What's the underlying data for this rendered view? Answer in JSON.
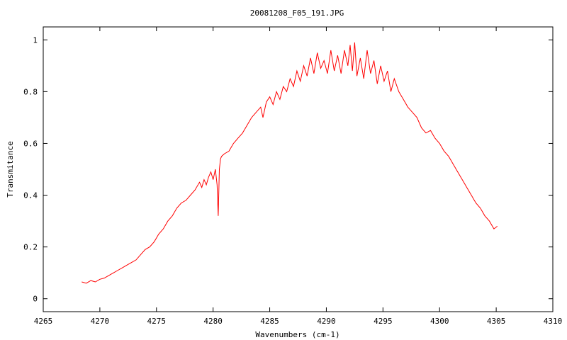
{
  "chart_data": {
    "type": "line",
    "title": "20081208_F05_191.JPG",
    "xlabel": "Wavenumbers (cm-1)",
    "ylabel": "Transmitance",
    "xlim": [
      4265,
      4310
    ],
    "ylim": [
      -0.05,
      1.05
    ],
    "xticks": [
      4265,
      4270,
      4275,
      4280,
      4285,
      4290,
      4295,
      4300,
      4305,
      4310
    ],
    "xtick_labels": [
      "4265",
      "4270",
      "4275",
      "4280",
      "4285",
      "4290",
      "4295",
      "4300",
      "4305",
      "4310"
    ],
    "yticks": [
      0,
      0.2,
      0.4,
      0.6,
      0.8,
      1
    ],
    "ytick_labels": [
      "0",
      "0.2",
      "0.4",
      "0.6",
      "0.8",
      "1"
    ],
    "grid": false,
    "legend": "none",
    "series": [
      {
        "color": "#ff0000",
        "x": [
          4268.4,
          4268.8,
          4269.2,
          4269.6,
          4270.0,
          4270.4,
          4270.8,
          4271.2,
          4271.6,
          4272.0,
          4272.4,
          4272.8,
          4273.2,
          4273.6,
          4274.0,
          4274.4,
          4274.8,
          4275.2,
          4275.6,
          4276.0,
          4276.4,
          4276.8,
          4277.2,
          4277.6,
          4278.0,
          4278.4,
          4278.8,
          4279.0,
          4279.2,
          4279.4,
          4279.6,
          4279.8,
          4280.0,
          4280.2,
          4280.35,
          4280.45,
          4280.55,
          4280.65,
          4280.75,
          4281.0,
          4281.4,
          4281.8,
          4282.2,
          4282.6,
          4283.0,
          4283.4,
          4283.8,
          4284.2,
          4284.4,
          4284.7,
          4285.0,
          4285.3,
          4285.6,
          4285.9,
          4286.2,
          4286.5,
          4286.8,
          4287.1,
          4287.4,
          4287.7,
          4288.0,
          4288.3,
          4288.6,
          4288.9,
          4289.2,
          4289.5,
          4289.8,
          4290.1,
          4290.4,
          4290.7,
          4291.0,
          4291.3,
          4291.6,
          4291.9,
          4292.1,
          4292.3,
          4292.5,
          4292.7,
          4293.0,
          4293.3,
          4293.6,
          4293.9,
          4294.2,
          4294.5,
          4294.8,
          4295.1,
          4295.4,
          4295.7,
          4296.0,
          4296.4,
          4296.8,
          4297.2,
          4297.6,
          4298.0,
          4298.4,
          4298.8,
          4299.2,
          4299.6,
          4300.0,
          4300.4,
          4300.8,
          4301.2,
          4301.6,
          4302.0,
          4302.4,
          4302.8,
          4303.2,
          4303.6,
          4304.0,
          4304.4,
          4304.8,
          4305.1
        ],
        "y": [
          0.065,
          0.06,
          0.07,
          0.065,
          0.075,
          0.08,
          0.09,
          0.1,
          0.11,
          0.12,
          0.13,
          0.14,
          0.15,
          0.17,
          0.19,
          0.2,
          0.22,
          0.25,
          0.27,
          0.3,
          0.32,
          0.35,
          0.37,
          0.38,
          0.4,
          0.42,
          0.45,
          0.43,
          0.46,
          0.44,
          0.47,
          0.49,
          0.46,
          0.5,
          0.44,
          0.32,
          0.5,
          0.54,
          0.55,
          0.56,
          0.57,
          0.6,
          0.62,
          0.64,
          0.67,
          0.7,
          0.72,
          0.74,
          0.7,
          0.76,
          0.78,
          0.75,
          0.8,
          0.77,
          0.82,
          0.8,
          0.85,
          0.82,
          0.88,
          0.84,
          0.9,
          0.86,
          0.93,
          0.87,
          0.95,
          0.89,
          0.92,
          0.87,
          0.96,
          0.88,
          0.94,
          0.87,
          0.96,
          0.9,
          0.98,
          0.88,
          0.99,
          0.86,
          0.93,
          0.85,
          0.96,
          0.87,
          0.92,
          0.83,
          0.9,
          0.84,
          0.88,
          0.8,
          0.85,
          0.8,
          0.77,
          0.74,
          0.72,
          0.7,
          0.66,
          0.64,
          0.65,
          0.62,
          0.6,
          0.57,
          0.55,
          0.52,
          0.49,
          0.46,
          0.43,
          0.4,
          0.37,
          0.35,
          0.32,
          0.3,
          0.27,
          0.28
        ]
      }
    ]
  }
}
